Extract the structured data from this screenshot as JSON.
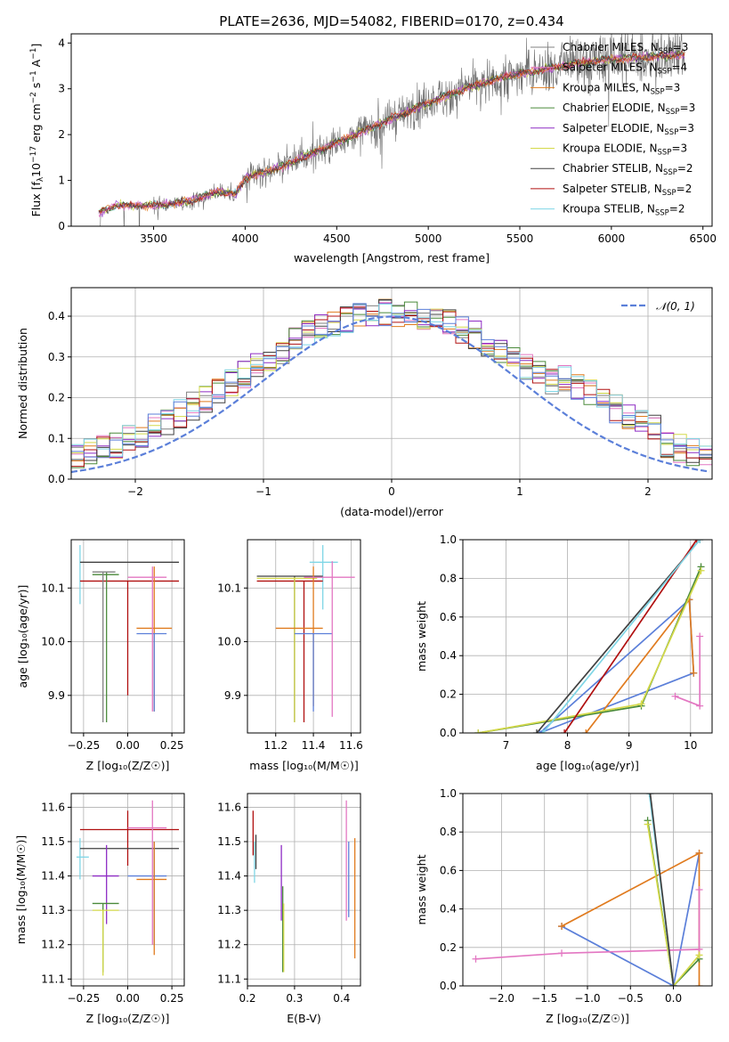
{
  "colors": {
    "chabrier_miles": "#808080",
    "salpeter_miles": "#e377c2",
    "kroupa_miles": "#e07b1f",
    "chabrier_elodie": "#4a8a3a",
    "salpeter_elodie": "#8e2bc4",
    "kroupa_elodie": "#d4d94a",
    "chabrier_stelib": "#404040",
    "salpeter_stelib": "#b01010",
    "kroupa_stelib": "#7fd6e6",
    "blue": "#5b7fd9",
    "normal": "#5b7fd9"
  },
  "chart_data": [
    {
      "id": "spectrum",
      "type": "line",
      "title": "PLATE=2636, MJD=54082, FIBERID=0170, z=0.434",
      "xlabel": "wavelength [Angstrom, rest frame]",
      "ylabel_parts": {
        "main": "Flux [f",
        "sub": "λ",
        "rest": "10",
        "sup1": "−17",
        "rest2": " erg cm",
        "sup2": "−2",
        "rest3": " s",
        "sup3": "−1",
        "rest4": " A",
        "sup4": "−1",
        "end": "]"
      },
      "xlim": [
        3050,
        6550
      ],
      "ylim": [
        0,
        4.2
      ],
      "xticks": [
        "3500",
        "4000",
        "4500",
        "5000",
        "5500",
        "6000",
        "6500"
      ],
      "xtick_values": [
        3500,
        4000,
        4500,
        5000,
        5500,
        6000,
        6500
      ],
      "yticks": [
        "0",
        "1",
        "2",
        "3",
        "4"
      ],
      "ytick_values": [
        0,
        1,
        2,
        3,
        4
      ],
      "continuum_knots": [
        [
          3200,
          0.3
        ],
        [
          3300,
          0.46
        ],
        [
          3500,
          0.45
        ],
        [
          3700,
          0.55
        ],
        [
          3850,
          0.75
        ],
        [
          3950,
          0.7
        ],
        [
          4000,
          1.05
        ],
        [
          4200,
          1.3
        ],
        [
          4400,
          1.65
        ],
        [
          4600,
          2.0
        ],
        [
          4800,
          2.35
        ],
        [
          5000,
          2.7
        ],
        [
          5200,
          3.0
        ],
        [
          5400,
          3.25
        ],
        [
          5600,
          3.4
        ],
        [
          5800,
          3.55
        ],
        [
          6000,
          3.65
        ],
        [
          6200,
          3.7
        ],
        [
          6400,
          3.75
        ]
      ],
      "legend": [
        {
          "name": "Chabrier MILES, N",
          "sub": "SSP",
          "suffix": "=3",
          "color": "chabrier_miles"
        },
        {
          "name": "Salpeter MILES, N",
          "sub": "SSP",
          "suffix": "=4",
          "color": "salpeter_miles"
        },
        {
          "name": "Kroupa MILES, N",
          "sub": "SSP",
          "suffix": "=3",
          "color": "kroupa_miles"
        },
        {
          "name": "Chabrier ELODIE, N",
          "sub": "SSP",
          "suffix": "=3",
          "color": "chabrier_elodie"
        },
        {
          "name": "Salpeter ELODIE, N",
          "sub": "SSP",
          "suffix": "=3",
          "color": "salpeter_elodie"
        },
        {
          "name": "Kroupa ELODIE, N",
          "sub": "SSP",
          "suffix": "=3",
          "color": "kroupa_elodie"
        },
        {
          "name": "Chabrier STELIB, N",
          "sub": "SSP",
          "suffix": "=2",
          "color": "chabrier_stelib"
        },
        {
          "name": "Salpeter STELIB, N",
          "sub": "SSP",
          "suffix": "=2",
          "color": "salpeter_stelib"
        },
        {
          "name": "Kroupa STELIB, N",
          "sub": "SSP",
          "suffix": "=2",
          "color": "kroupa_stelib"
        }
      ],
      "legend_placement": "upper-right"
    },
    {
      "id": "residuals",
      "type": "step-histogram",
      "xlabel": "(data-model)/error",
      "ylabel": "Normed distribution",
      "xlim": [
        -2.5,
        2.5
      ],
      "ylim": [
        0,
        0.47
      ],
      "xticks": [
        "−2",
        "−1",
        "0",
        "1",
        "2"
      ],
      "xtick_values": [
        -2,
        -1,
        0,
        1,
        2
      ],
      "yticks": [
        "0.0",
        "0.1",
        "0.2",
        "0.3",
        "0.4"
      ],
      "ytick_values": [
        0,
        0.1,
        0.2,
        0.3,
        0.4
      ],
      "bin_width": 0.1,
      "grid": true,
      "legend": [
        {
          "name": "𝒩(0, 1)",
          "color": "normal",
          "style": "dashed"
        }
      ],
      "legend_placement": "upper-right"
    },
    {
      "id": "age_vs_Z",
      "type": "errorbar",
      "xlabel": "Z [log₁₀(Z/Z☉)]",
      "ylabel": "age  [log₁₀(age/yr)]",
      "xlim": [
        -0.32,
        0.32
      ],
      "ylim": [
        9.83,
        10.19
      ],
      "xticks": [
        "−0.25",
        "0.00",
        "0.25"
      ],
      "xtick_values": [
        -0.25,
        0,
        0.25
      ],
      "yticks": [
        "9.9",
        "10.0",
        "10.1"
      ],
      "ytick_values": [
        9.9,
        10.0,
        10.1
      ],
      "grid": true,
      "points": [
        {
          "x": -0.27,
          "xerr": 0.0,
          "y": 10.12,
          "ylo": 10.07,
          "yhi": 10.18,
          "color": "kroupa_stelib"
        },
        {
          "x": 0.0,
          "xlo": -0.27,
          "xhi": 0.29,
          "y": 10.148,
          "ylo": 10.148,
          "yhi": 10.148,
          "color": "chabrier_stelib"
        },
        {
          "x": 0.0,
          "xlo": -0.27,
          "xhi": 0.29,
          "y": 10.113,
          "ylo": 9.9,
          "yhi": 10.113,
          "color": "salpeter_stelib"
        },
        {
          "x": -0.12,
          "xlo": -0.2,
          "xhi": -0.05,
          "y": 10.125,
          "ylo": 9.85,
          "yhi": 10.13,
          "color": "chabrier_elodie"
        },
        {
          "x": -0.14,
          "xlo": -0.2,
          "xhi": -0.07,
          "y": 10.13,
          "ylo": 9.85,
          "yhi": 10.13,
          "color": "chabrier_miles"
        },
        {
          "x": 0.15,
          "xlo": 0.05,
          "xhi": 0.25,
          "y": 10.025,
          "ylo": 9.87,
          "yhi": 10.14,
          "color": "kroupa_miles"
        },
        {
          "x": 0.15,
          "xlo": 0.05,
          "xhi": 0.22,
          "y": 10.015,
          "ylo": 9.87,
          "yhi": 10.015,
          "color": "blue"
        },
        {
          "x": 0.14,
          "xlo": 0.0,
          "xhi": 0.22,
          "y": 10.12,
          "ylo": 9.87,
          "yhi": 10.14,
          "color": "salpeter_miles"
        }
      ]
    },
    {
      "id": "age_vs_mass",
      "type": "errorbar",
      "xlabel": "mass [log₁₀(M/M☉)]",
      "ylabel": "",
      "xlim": [
        11.05,
        11.65
      ],
      "ylim": [
        9.83,
        10.19
      ],
      "xticks": [
        "11.2",
        "11.4",
        "11.6"
      ],
      "xtick_values": [
        11.2,
        11.4,
        11.6
      ],
      "yticks": [
        "9.9",
        "10.0",
        "10.1"
      ],
      "ytick_values": [
        9.9,
        10.0,
        10.1
      ],
      "grid": true,
      "points": [
        {
          "x": 11.45,
          "xlo": 11.38,
          "xhi": 11.53,
          "y": 10.148,
          "ylo": 10.06,
          "yhi": 10.18,
          "color": "kroupa_stelib"
        },
        {
          "x": 11.3,
          "xlo": 11.1,
          "xhi": 11.45,
          "y": 10.122,
          "ylo": 9.85,
          "yhi": 10.122,
          "color": "chabrier_stelib"
        },
        {
          "x": 11.35,
          "xlo": 11.1,
          "xhi": 11.45,
          "y": 10.113,
          "ylo": 9.85,
          "yhi": 10.113,
          "color": "salpeter_stelib"
        },
        {
          "x": 11.3,
          "xlo": 11.1,
          "xhi": 11.42,
          "y": 10.118,
          "ylo": 9.85,
          "yhi": 10.12,
          "color": "kroupa_elodie"
        },
        {
          "x": 11.4,
          "xlo": 11.2,
          "xhi": 11.45,
          "y": 10.025,
          "ylo": 9.88,
          "yhi": 10.14,
          "color": "kroupa_miles"
        },
        {
          "x": 11.4,
          "xlo": 11.3,
          "xhi": 11.5,
          "y": 10.015,
          "ylo": 9.87,
          "yhi": 10.015,
          "color": "blue"
        },
        {
          "x": 11.5,
          "xlo": 11.35,
          "xhi": 11.62,
          "y": 10.12,
          "ylo": 9.86,
          "yhi": 10.15,
          "color": "salpeter_miles"
        }
      ]
    },
    {
      "id": "mass_weight_vs_age",
      "type": "line",
      "xlabel": "age  [log₁₀(age/yr)]",
      "ylabel": "mass weight",
      "xlim": [
        6.3,
        10.35
      ],
      "ylim": [
        0,
        1.0
      ],
      "xticks": [
        "7",
        "8",
        "9",
        "10"
      ],
      "xtick_values": [
        7,
        8,
        9,
        10
      ],
      "yticks": [
        "0.0",
        "0.2",
        "0.4",
        "0.6",
        "0.8",
        "1.0"
      ],
      "ytick_values": [
        0,
        0.2,
        0.4,
        0.6,
        0.8,
        1.0
      ],
      "grid": true,
      "series": [
        {
          "color": "blue",
          "points": [
            [
              7.55,
              0.0
            ],
            [
              9.98,
              0.69
            ],
            [
              10.05,
              0.31
            ],
            [
              7.55,
              0.0
            ]
          ]
        },
        {
          "color": "kroupa_miles",
          "points": [
            [
              8.3,
              0.0
            ],
            [
              9.98,
              0.69
            ],
            [
              10.05,
              0.31
            ]
          ]
        },
        {
          "color": "salpeter_miles",
          "points": [
            [
              9.75,
              0.19
            ],
            [
              10.15,
              0.14
            ],
            [
              10.15,
              0.5
            ]
          ]
        },
        {
          "color": "chabrier_elodie",
          "points": [
            [
              6.55,
              0.0
            ],
            [
              9.2,
              0.14
            ],
            [
              10.17,
              0.86
            ]
          ]
        },
        {
          "color": "kroupa_elodie",
          "points": [
            [
              6.55,
              0.0
            ],
            [
              9.2,
              0.15
            ],
            [
              10.17,
              0.84
            ]
          ]
        },
        {
          "color": "chabrier_stelib",
          "points": [
            [
              7.5,
              0.0
            ],
            [
              10.15,
              1.0
            ]
          ]
        },
        {
          "color": "salpeter_stelib",
          "points": [
            [
              7.95,
              0.0
            ],
            [
              10.1,
              1.0
            ]
          ]
        },
        {
          "color": "kroupa_stelib",
          "points": [
            [
              7.6,
              0.0
            ],
            [
              10.15,
              1.0
            ]
          ]
        }
      ]
    },
    {
      "id": "mass_vs_Z",
      "type": "errorbar",
      "xlabel": "Z [log₁₀(Z/Z☉)]",
      "ylabel": "mass [log₁₀(M/M☉)]",
      "xlim": [
        -0.32,
        0.32
      ],
      "ylim": [
        11.08,
        11.64
      ],
      "xticks": [
        "−0.25",
        "0.00",
        "0.25"
      ],
      "xtick_values": [
        -0.25,
        0,
        0.25
      ],
      "yticks": [
        "11.1",
        "11.2",
        "11.3",
        "11.4",
        "11.5",
        "11.6"
      ],
      "ytick_values": [
        11.1,
        11.2,
        11.3,
        11.4,
        11.5,
        11.6
      ],
      "grid": true,
      "points": [
        {
          "x": -0.27,
          "xlo": -0.29,
          "xhi": -0.22,
          "y": 11.455,
          "ylo": 11.39,
          "yhi": 11.51,
          "color": "kroupa_stelib"
        },
        {
          "x": 0.0,
          "xlo": -0.27,
          "xhi": 0.29,
          "y": 11.535,
          "ylo": 11.43,
          "yhi": 11.59,
          "color": "salpeter_stelib"
        },
        {
          "x": 0.0,
          "xlo": -0.27,
          "xhi": 0.29,
          "y": 11.48,
          "ylo": 11.48,
          "yhi": 11.48,
          "color": "chabrier_stelib"
        },
        {
          "x": -0.12,
          "xlo": -0.2,
          "xhi": -0.05,
          "y": 11.4,
          "ylo": 11.26,
          "yhi": 11.49,
          "color": "salpeter_elodie"
        },
        {
          "x": -0.14,
          "xlo": -0.2,
          "xhi": -0.05,
          "y": 11.32,
          "ylo": 11.12,
          "yhi": 11.32,
          "color": "chabrier_elodie"
        },
        {
          "x": -0.14,
          "xlo": -0.2,
          "xhi": -0.05,
          "y": 11.3,
          "ylo": 11.11,
          "yhi": 11.3,
          "color": "kroupa_elodie"
        },
        {
          "x": 0.15,
          "xlo": 0.0,
          "xhi": 0.22,
          "y": 11.4,
          "ylo": 11.2,
          "yhi": 11.5,
          "color": "blue"
        },
        {
          "x": 0.15,
          "xlo": 0.05,
          "xhi": 0.22,
          "y": 11.39,
          "ylo": 11.17,
          "yhi": 11.5,
          "color": "kroupa_miles"
        },
        {
          "x": 0.14,
          "xlo": 0.0,
          "xhi": 0.22,
          "y": 11.54,
          "ylo": 11.2,
          "yhi": 11.62,
          "color": "salpeter_miles"
        }
      ]
    },
    {
      "id": "mass_vs_EBV",
      "type": "errorbar",
      "xlabel": "E(B-V)",
      "ylabel": "",
      "xlim": [
        0.2,
        0.44
      ],
      "ylim": [
        11.08,
        11.64
      ],
      "xticks": [
        "0.2",
        "0.3",
        "0.4"
      ],
      "xtick_values": [
        0.2,
        0.3,
        0.4
      ],
      "yticks": [
        "11.1",
        "11.2",
        "11.3",
        "11.4",
        "11.5",
        "11.6"
      ],
      "ytick_values": [
        11.1,
        11.2,
        11.3,
        11.4,
        11.5,
        11.6
      ],
      "grid": true,
      "points": [
        {
          "x": 0.212,
          "y": 11.53,
          "ylo": 11.46,
          "yhi": 11.59,
          "color": "salpeter_stelib"
        },
        {
          "x": 0.215,
          "y": 11.46,
          "ylo": 11.38,
          "yhi": 11.5,
          "color": "kroupa_stelib"
        },
        {
          "x": 0.218,
          "y": 11.48,
          "ylo": 11.42,
          "yhi": 11.52,
          "color": "chabrier_stelib"
        },
        {
          "x": 0.272,
          "y": 11.4,
          "ylo": 11.27,
          "yhi": 11.49,
          "color": "salpeter_elodie"
        },
        {
          "x": 0.275,
          "y": 11.3,
          "ylo": 11.12,
          "yhi": 11.37,
          "color": "chabrier_elodie"
        },
        {
          "x": 0.277,
          "y": 11.28,
          "ylo": 11.12,
          "yhi": 11.32,
          "color": "kroupa_elodie"
        },
        {
          "x": 0.41,
          "y": 11.45,
          "ylo": 11.27,
          "yhi": 11.62,
          "color": "salpeter_miles"
        },
        {
          "x": 0.415,
          "y": 11.4,
          "ylo": 11.28,
          "yhi": 11.5,
          "color": "blue"
        },
        {
          "x": 0.428,
          "y": 11.38,
          "ylo": 11.16,
          "yhi": 11.51,
          "color": "kroupa_miles"
        }
      ]
    },
    {
      "id": "mass_weight_vs_Z",
      "type": "line",
      "xlabel": "Z [log₁₀(Z/Z☉)]",
      "ylabel": "mass weight",
      "xlim": [
        -2.45,
        0.45
      ],
      "ylim": [
        0,
        1.0
      ],
      "xticks": [
        "−2.0",
        "−1.5",
        "−1.0",
        "−0.5",
        "0.0"
      ],
      "xtick_values": [
        -2.0,
        -1.5,
        -1.0,
        -0.5,
        0.0
      ],
      "yticks": [
        "0.0",
        "0.2",
        "0.4",
        "0.6",
        "0.8",
        "1.0"
      ],
      "ytick_values": [
        0,
        0.2,
        0.4,
        0.6,
        0.8,
        1.0
      ],
      "grid": true,
      "series": [
        {
          "color": "blue",
          "points": [
            [
              -1.3,
              0.31
            ],
            [
              0.0,
              0.0
            ],
            [
              0.3,
              0.69
            ]
          ]
        },
        {
          "color": "kroupa_miles",
          "points": [
            [
              -1.3,
              0.31
            ],
            [
              0.3,
              0.69
            ],
            [
              0.3,
              0.0
            ]
          ]
        },
        {
          "color": "salpeter_miles",
          "points": [
            [
              -2.3,
              0.14
            ],
            [
              -1.3,
              0.17
            ],
            [
              0.3,
              0.19
            ],
            [
              0.3,
              0.5
            ]
          ]
        },
        {
          "color": "chabrier_elodie",
          "points": [
            [
              -0.3,
              0.86
            ],
            [
              0.0,
              0.0
            ],
            [
              0.3,
              0.14
            ]
          ]
        },
        {
          "color": "kroupa_elodie",
          "points": [
            [
              -0.3,
              0.84
            ],
            [
              0.0,
              0.0
            ],
            [
              0.3,
              0.16
            ]
          ]
        },
        {
          "color": "kroupa_stelib",
          "points": [
            [
              -0.28,
              1.0
            ],
            [
              0.0,
              0.0
            ]
          ]
        },
        {
          "color": "chabrier_stelib",
          "points": [
            [
              -0.27,
              1.0
            ],
            [
              0.0,
              0.0
            ]
          ]
        }
      ]
    }
  ]
}
